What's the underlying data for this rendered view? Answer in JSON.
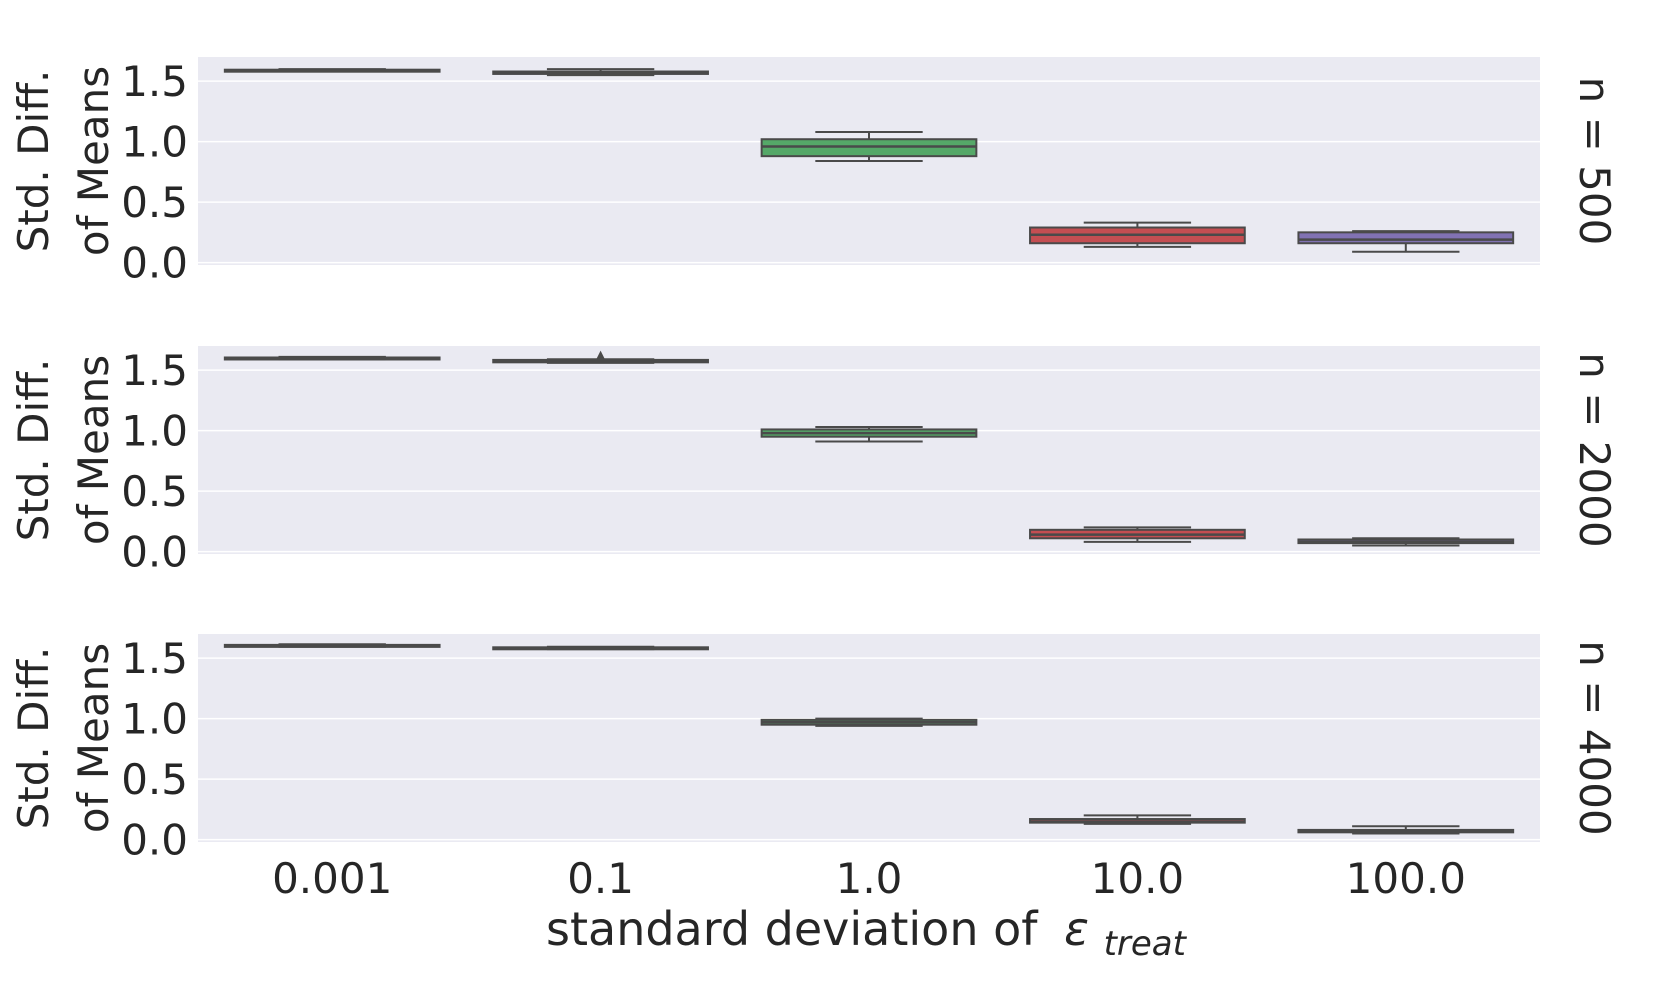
{
  "chart_data": {
    "type": "box",
    "xlabel": "standard deviation of",
    "xlabel_symbol": "ε",
    "xlabel_subscript": "treat",
    "ylabel_line1": "Std. Diff.",
    "ylabel_line2": "of Means",
    "categories": [
      "0.001",
      "0.1",
      "1.0",
      "10.0",
      "100.0"
    ],
    "yticks": [
      "0.0",
      "0.5",
      "1.0",
      "1.5"
    ],
    "ylim": [
      -0.02,
      1.7
    ],
    "grid": true,
    "colors": {
      "background": "#eaeaf2",
      "grid": "#ffffff",
      "line": "#4a4a4a",
      "boxes": [
        "#4c72b0",
        "#dd8452",
        "#55a868",
        "#c44e52",
        "#8172b3"
      ]
    },
    "panels": [
      {
        "label": "n = 500",
        "boxes": [
          {
            "category": "0.001",
            "whislo": 1.58,
            "q1": 1.585,
            "med": 1.59,
            "q3": 1.595,
            "whishi": 1.6
          },
          {
            "category": "0.1",
            "whislo": 1.55,
            "q1": 1.56,
            "med": 1.57,
            "q3": 1.58,
            "whishi": 1.6
          },
          {
            "category": "1.0",
            "whislo": 0.84,
            "q1": 0.88,
            "med": 0.96,
            "q3": 1.02,
            "whishi": 1.08
          },
          {
            "category": "10.0",
            "whislo": 0.13,
            "q1": 0.16,
            "med": 0.23,
            "q3": 0.29,
            "whishi": 0.33
          },
          {
            "category": "100.0",
            "whislo": 0.09,
            "q1": 0.16,
            "med": 0.19,
            "q3": 0.25,
            "whishi": 0.26
          }
        ]
      },
      {
        "label": "n = 2000",
        "boxes": [
          {
            "category": "0.001",
            "whislo": 1.59,
            "q1": 1.59,
            "med": 1.6,
            "q3": 1.605,
            "whishi": 1.61
          },
          {
            "category": "0.1",
            "whislo": 1.56,
            "q1": 1.565,
            "med": 1.575,
            "q3": 1.585,
            "whishi": 1.59,
            "fliers": [
              1.62
            ]
          },
          {
            "category": "1.0",
            "whislo": 0.91,
            "q1": 0.95,
            "med": 0.98,
            "q3": 1.01,
            "whishi": 1.03
          },
          {
            "category": "10.0",
            "whislo": 0.08,
            "q1": 0.11,
            "med": 0.14,
            "q3": 0.18,
            "whishi": 0.2
          },
          {
            "category": "100.0",
            "whislo": 0.05,
            "q1": 0.07,
            "med": 0.08,
            "q3": 0.1,
            "whishi": 0.11
          }
        ]
      },
      {
        "label": "n = 4000",
        "boxes": [
          {
            "category": "0.001",
            "whislo": 1.595,
            "q1": 1.6,
            "med": 1.605,
            "q3": 1.61,
            "whishi": 1.615
          },
          {
            "category": "0.1",
            "whislo": 1.575,
            "q1": 1.58,
            "med": 1.585,
            "q3": 1.59,
            "whishi": 1.595
          },
          {
            "category": "1.0",
            "whislo": 0.94,
            "q1": 0.95,
            "med": 0.97,
            "q3": 0.99,
            "whishi": 1.0
          },
          {
            "category": "10.0",
            "whislo": 0.13,
            "q1": 0.14,
            "med": 0.15,
            "q3": 0.17,
            "whishi": 0.2
          },
          {
            "category": "100.0",
            "whislo": 0.05,
            "q1": 0.06,
            "med": 0.07,
            "q3": 0.08,
            "whishi": 0.11
          }
        ]
      }
    ]
  }
}
